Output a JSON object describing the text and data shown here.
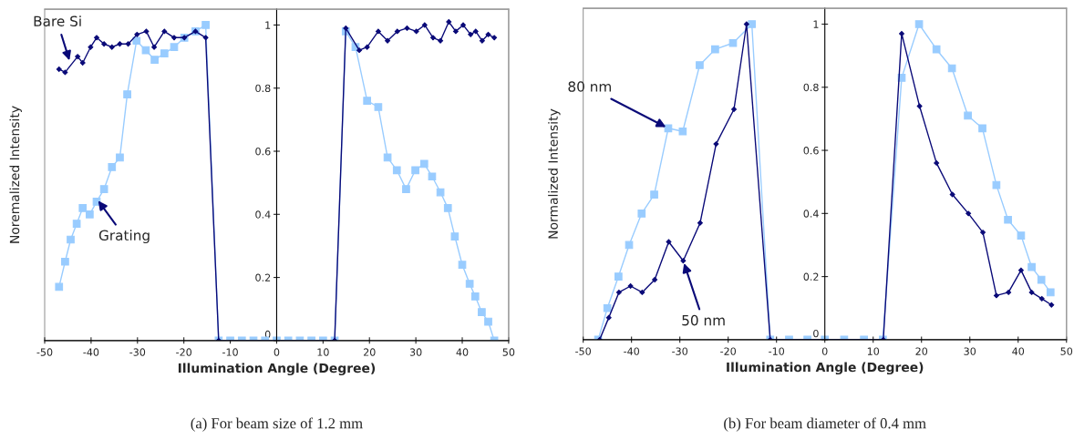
{
  "chart_data": [
    {
      "type": "line",
      "xlabel": "Illumination Angle (Degree)",
      "ylabel": "Noremalized Intensity",
      "xlim": [
        -50,
        50
      ],
      "ylim": [
        0,
        1.05
      ],
      "xticks": [
        -50,
        -40,
        -30,
        -20,
        -10,
        0,
        10,
        20,
        30,
        40,
        50
      ],
      "yticks": [
        0,
        0.2,
        0.4,
        0.6,
        0.8,
        1
      ],
      "grid": false,
      "legend": false,
      "series": [
        {
          "color": "#99ccff",
          "marker": "square",
          "x": [
            -46.9,
            -45.6,
            -44.4,
            -43.1,
            -41.8,
            -40.3,
            -38.8,
            -37.2,
            -35.5,
            -33.8,
            -32.2,
            -30.2,
            -28.2,
            -26.3,
            -24.2,
            -22.1,
            -19.9,
            -17.5,
            -15.3,
            -12.5,
            -10,
            -7.5,
            -5,
            -2.5,
            0,
            2.5,
            5,
            7.5,
            10,
            12.5,
            14.9,
            17.0,
            19.5,
            21.9,
            23.9,
            25.9,
            27.9,
            29.9,
            31.8,
            33.5,
            35.3,
            36.9,
            38.4,
            40.0,
            41.6,
            42.8,
            44.2,
            45.6,
            46.9
          ],
          "values": [
            0.17,
            0.25,
            0.32,
            0.37,
            0.42,
            0.4,
            0.44,
            0.48,
            0.55,
            0.58,
            0.78,
            0.95,
            0.92,
            0.89,
            0.91,
            0.93,
            0.96,
            0.98,
            1.0,
            0,
            0,
            0,
            0,
            0,
            0,
            0,
            0,
            0,
            0,
            0,
            0.98,
            0.93,
            0.76,
            0.74,
            0.58,
            0.54,
            0.48,
            0.54,
            0.56,
            0.52,
            0.47,
            0.42,
            0.33,
            0.24,
            0.18,
            0.14,
            0.09,
            0.06,
            0
          ]
        },
        {
          "color": "#0a0a78",
          "marker": "diamond",
          "x": [
            -46.9,
            -45.6,
            -42.9,
            -41.8,
            -40.1,
            -38.8,
            -37.2,
            -35.5,
            -33.8,
            -32.0,
            -30.1,
            -28.1,
            -26.4,
            -24.2,
            -22.1,
            -19.9,
            -17.5,
            -15.3,
            -12.5,
            12.5,
            14.9,
            17.8,
            19.5,
            21.9,
            23.9,
            26.0,
            28.1,
            30.1,
            31.9,
            33.7,
            35.3,
            37.1,
            38.6,
            40.2,
            41.8,
            42.9,
            44.3,
            45.6,
            46.9
          ],
          "values": [
            0.86,
            0.85,
            0.9,
            0.88,
            0.93,
            0.96,
            0.94,
            0.93,
            0.94,
            0.94,
            0.97,
            0.98,
            0.93,
            0.98,
            0.96,
            0.96,
            0.98,
            0.96,
            0,
            0,
            0.99,
            0.92,
            0.93,
            0.98,
            0.95,
            0.98,
            0.99,
            0.98,
            1.0,
            0.96,
            0.95,
            1.01,
            0.98,
            1.0,
            0.97,
            0.98,
            0.95,
            0.97,
            0.96
          ]
        }
      ],
      "annotations": [
        {
          "text": "Bare Si",
          "x": -44.5,
          "y": 0.88
        },
        {
          "text": "Grating",
          "x": -38.8,
          "y": 0.45
        },
        "(a) For beam size of 1.2 mm"
      ]
    },
    {
      "type": "line",
      "xlabel": "Illumination Angle (Degree)",
      "ylabel": "Normalized Intensity",
      "xlim": [
        -50,
        50
      ],
      "ylim": [
        0,
        1.05
      ],
      "xticks": [
        -50,
        -40,
        -30,
        -20,
        -10,
        0,
        10,
        20,
        30,
        40,
        50
      ],
      "yticks": [
        0,
        0.2,
        0.4,
        0.6,
        0.8,
        1
      ],
      "grid": false,
      "legend": false,
      "series": [
        {
          "color": "#99ccff",
          "marker": "square",
          "x": [
            -46.9,
            -45.0,
            -42.7,
            -40.5,
            -37.9,
            -35.3,
            -32.4,
            -29.4,
            -25.9,
            -22.7,
            -19.0,
            -15.1,
            -11.3,
            -7.4,
            -3.6,
            0,
            4.0,
            8.1,
            12.0,
            15.9,
            19.5,
            23.1,
            26.3,
            29.6,
            32.6,
            35.5,
            37.9,
            40.6,
            42.8,
            44.8,
            46.7
          ],
          "values": [
            0,
            0.1,
            0.2,
            0.3,
            0.4,
            0.46,
            0.67,
            0.66,
            0.87,
            0.92,
            0.94,
            1.0,
            0,
            0,
            0,
            0,
            0,
            0,
            0,
            0.83,
            1.0,
            0.92,
            0.86,
            0.71,
            0.67,
            0.49,
            0.38,
            0.33,
            0.23,
            0.19,
            0.15
          ]
        },
        {
          "color": "#0a0a78",
          "marker": "diamond",
          "x": [
            -46.6,
            -44.7,
            -42.6,
            -40.2,
            -37.8,
            -35.2,
            -32.3,
            -29.3,
            -25.8,
            -22.5,
            -18.8,
            -16.2,
            -11.3,
            12.1,
            15.9,
            19.6,
            23.1,
            26.4,
            29.7,
            32.7,
            35.5,
            38.0,
            40.6,
            42.8,
            44.9,
            46.9
          ],
          "values": [
            0,
            0.07,
            0.15,
            0.17,
            0.15,
            0.19,
            0.31,
            0.25,
            0.37,
            0.62,
            0.73,
            1.0,
            0,
            0,
            0.97,
            0.74,
            0.56,
            0.46,
            0.4,
            0.34,
            0.14,
            0.15,
            0.22,
            0.15,
            0.13,
            0.11
          ]
        }
      ],
      "annotations": [
        {
          "text": "80 nm",
          "x": -32.4,
          "y": 0.67
        },
        {
          "text": "50 nm",
          "x": -29.3,
          "y": 0.25
        },
        "(b) For beam diameter of 0.4 mm"
      ]
    }
  ]
}
